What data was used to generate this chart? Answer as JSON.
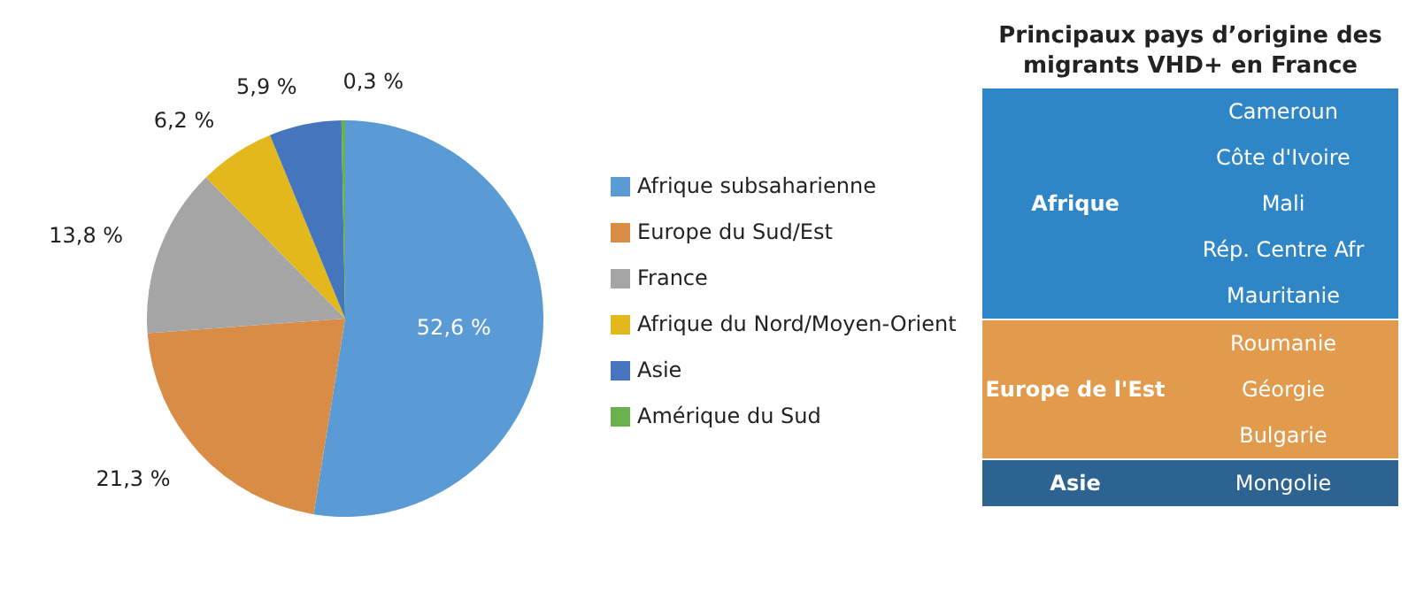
{
  "chart_data": [
    {
      "type": "pie",
      "categories": [
        "Afrique subsaharienne",
        "Europe du Sud/Est",
        "France",
        "Afrique du Nord/Moyen-Orient",
        "Asie",
        "Amérique du Sud"
      ],
      "values": [
        52.6,
        21.3,
        13.8,
        6.2,
        5.9,
        0.3
      ],
      "value_labels": [
        "52,6 %",
        "21,3 %",
        "13,8 %",
        "6,2 %",
        "5,9 %",
        "0,3 %"
      ],
      "colors": [
        "#5b9bd5",
        "#d98c45",
        "#a5a5a5",
        "#e3b81c",
        "#4575bd",
        "#6ab04c"
      ],
      "legend": "right"
    },
    {
      "type": "other",
      "title": "Principaux pays d’origine des migrants VHD+ en France",
      "categories": [
        "Afrique",
        "Europe de l'Est",
        "Asie"
      ],
      "colors": [
        "#2f86c6",
        "#e29b4c",
        "#2c6391"
      ],
      "annotations": [
        {
          "text": "Cameroun",
          "x": "Afrique"
        },
        {
          "text": "Côte d'Ivoire",
          "x": "Afrique"
        },
        {
          "text": "Mali",
          "x": "Afrique"
        },
        {
          "text": "Rép. Centre Afr",
          "x": "Afrique"
        },
        {
          "text": "Mauritanie",
          "x": "Afrique"
        },
        {
          "text": "Roumanie",
          "x": "Europe de l'Est"
        },
        {
          "text": "Géorgie",
          "x": "Europe de l'Est"
        },
        {
          "text": "Bulgarie",
          "x": "Europe de l'Est"
        },
        {
          "text": "Mongolie",
          "x": "Asie"
        }
      ]
    }
  ]
}
